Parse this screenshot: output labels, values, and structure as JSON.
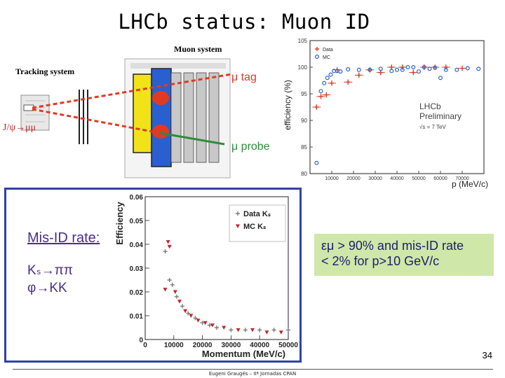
{
  "slide": {
    "title": "LHCb status: Muon ID",
    "page_number": "34",
    "footer": "Eugeni Graugés – IIª Jornadas CPAN"
  },
  "detector": {
    "tracking_label": "Tracking system",
    "muon_label": "Muon system",
    "decay_label": "J/ψ→μμ",
    "tag_label": "μ tag",
    "probe_label": "μ probe",
    "colors": {
      "tag": "#e03a24",
      "probe": "#2e8b3a",
      "chamber": "#f2e21a",
      "station": "#2a5fcf"
    }
  },
  "misid": {
    "heading": "Mis-ID rate:",
    "ks_line": "Kₛ→ππ",
    "phi_line": "φ→KK",
    "border_color": "#3340a6"
  },
  "summary": {
    "line1": "εμ > 90% and mis-ID rate",
    "line2": "< 2% for p>10 GeV/c",
    "background": "#cfe7a9"
  },
  "chart_data": [
    {
      "type": "scatter",
      "xlabel": "p (MeV/c)",
      "ylabel": "efficiency (%)",
      "xlim": [
        0,
        80000
      ],
      "ylim": [
        80,
        105
      ],
      "x_ticks": [
        10000,
        20000,
        30000,
        40000,
        50000,
        60000,
        70000
      ],
      "x_tick_labels": [
        "10000",
        "20000",
        "30000",
        "40000",
        "50000",
        "60000",
        "70000"
      ],
      "y_ticks": [
        80,
        85,
        90,
        95,
        100,
        105
      ],
      "annotation": [
        "LHCb",
        "Preliminary",
        "√s = 7 TeV"
      ],
      "legend_position": "top-left",
      "series": [
        {
          "name": "Data",
          "color": "#e03a24",
          "marker": "cross",
          "points": [
            [
              3000,
              92.5
            ],
            [
              5000,
              94.5
            ],
            [
              7500,
              94.8
            ],
            [
              10000,
              97
            ],
            [
              12500,
              99.5
            ],
            [
              17500,
              97.2
            ],
            [
              22500,
              98.5
            ],
            [
              27500,
              99.5
            ],
            [
              32500,
              99
            ],
            [
              37500,
              100
            ],
            [
              42500,
              100
            ],
            [
              47500,
              99
            ],
            [
              52500,
              100
            ],
            [
              57500,
              100
            ],
            [
              62500,
              100
            ],
            [
              70000,
              99.8
            ]
          ]
        },
        {
          "name": "MC",
          "color": "#2a5fcf",
          "marker": "circle",
          "points": [
            [
              3000,
              82
            ],
            [
              5000,
              95.5
            ],
            [
              6500,
              97
            ],
            [
              8000,
              98
            ],
            [
              9500,
              98.6
            ],
            [
              11000,
              99.3
            ],
            [
              12500,
              99.3
            ],
            [
              14000,
              99.2
            ],
            [
              17500,
              99.6
            ],
            [
              22500,
              99.5
            ],
            [
              27500,
              99.5
            ],
            [
              32500,
              99.7
            ],
            [
              37500,
              99.3
            ],
            [
              40000,
              99.5
            ],
            [
              42500,
              99.5
            ],
            [
              45000,
              100
            ],
            [
              47500,
              100
            ],
            [
              50000,
              99.2
            ],
            [
              52500,
              100
            ],
            [
              55000,
              99.7
            ],
            [
              57500,
              99.9
            ],
            [
              60000,
              98
            ],
            [
              62500,
              99.5
            ],
            [
              67500,
              99.5
            ],
            [
              72500,
              99.8
            ],
            [
              77500,
              99.7
            ]
          ]
        }
      ]
    },
    {
      "type": "scatter",
      "xlabel": "Momentum (MeV/c)",
      "ylabel": "Efficiency",
      "xlim": [
        0,
        50000
      ],
      "ylim": [
        0,
        0.06
      ],
      "x_ticks": [
        0,
        10000,
        20000,
        30000,
        40000,
        50000
      ],
      "x_tick_labels": [
        "0",
        "10000",
        "20000",
        "30000",
        "40000",
        "50000"
      ],
      "y_ticks": [
        0,
        0.01,
        0.02,
        0.03,
        0.04,
        0.05,
        0.06
      ],
      "y_tick_labels": [
        "0",
        "0.01",
        "0.02",
        "0.03",
        "0.04",
        "0.05",
        "0.06"
      ],
      "legend_position": "top-right",
      "series": [
        {
          "name": "Data Kₛ",
          "color": "#7a7a7a",
          "marker": "cross",
          "points": [
            [
              7000,
              0.037
            ],
            [
              8500,
              0.025
            ],
            [
              9500,
              0.023
            ],
            [
              11000,
              0.018
            ],
            [
              13000,
              0.014
            ],
            [
              15000,
              0.011
            ],
            [
              17500,
              0.009
            ],
            [
              20000,
              0.007
            ],
            [
              22500,
              0.006
            ],
            [
              25000,
              0.005
            ],
            [
              30000,
              0.004
            ],
            [
              35000,
              0.004
            ],
            [
              40000,
              0.004
            ],
            [
              45000,
              0.004
            ],
            [
              50000,
              0.004
            ]
          ]
        },
        {
          "name": "MC Kₛ",
          "color": "#c0262b",
          "marker": "triangle-down",
          "points": [
            [
              7000,
              0.021
            ],
            [
              8000,
              0.041
            ],
            [
              8500,
              0.039
            ],
            [
              10500,
              0.02
            ],
            [
              12000,
              0.016
            ],
            [
              14000,
              0.012
            ],
            [
              16000,
              0.01
            ],
            [
              18500,
              0.008
            ],
            [
              21000,
              0.007
            ],
            [
              23500,
              0.006
            ],
            [
              27500,
              0.005
            ],
            [
              32500,
              0.004
            ],
            [
              37500,
              0.004
            ],
            [
              42500,
              0.003
            ],
            [
              47500,
              0.003
            ]
          ]
        }
      ]
    }
  ]
}
